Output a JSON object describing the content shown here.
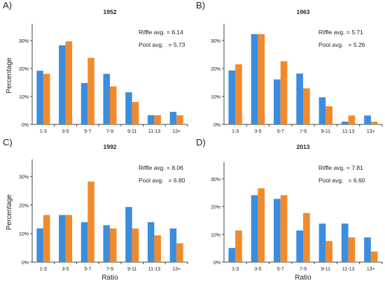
{
  "colors": {
    "riffle": "#3C8DDC",
    "pool": "#F28A2C",
    "axis": "#444444"
  },
  "chart_data": [
    {
      "type": "bar",
      "panel_label": "A)",
      "title": "1952",
      "ylabel": "Percentage",
      "xlabel": "",
      "ylim": [
        0,
        35
      ],
      "yticks": [
        "0%",
        "10%",
        "20%",
        "30%"
      ],
      "categories": [
        "1-3",
        "3-5",
        "5-7",
        "7-9",
        "9-11",
        "11-13",
        "13+"
      ],
      "series": [
        {
          "name": "Riffle",
          "values": [
            19.2,
            28.3,
            14.8,
            18.1,
            11.5,
            3.3,
            4.5
          ]
        },
        {
          "name": "Pool",
          "values": [
            18.1,
            29.7,
            23.8,
            13.6,
            8.0,
            3.3,
            3.3
          ]
        }
      ],
      "annotations": [
        "Riffle avg. = 6.14",
        "Pool avg.   = 5.73"
      ]
    },
    {
      "type": "bar",
      "panel_label": "B)",
      "title": "1963",
      "ylabel": "",
      "xlabel": "",
      "ylim": [
        0,
        35
      ],
      "yticks": [
        "0%",
        "10%",
        "20%",
        "30%"
      ],
      "categories": [
        "1-3",
        "3-5",
        "5-7",
        "7-9",
        "9-11",
        "11-13",
        "13+"
      ],
      "series": [
        {
          "name": "Riffle",
          "values": [
            19.3,
            32.3,
            16.1,
            18.2,
            9.7,
            1.0,
            3.2
          ]
        },
        {
          "name": "Pool",
          "values": [
            21.5,
            32.3,
            22.6,
            12.9,
            6.5,
            3.2,
            1.0
          ]
        }
      ],
      "annotations": [
        "Riffle avg. = 5.71",
        "Pool avg.   = 5.26"
      ]
    },
    {
      "type": "bar",
      "panel_label": "C)",
      "title": "1992",
      "ylabel": "Percentage",
      "xlabel": "Ratio",
      "ylim": [
        0,
        35
      ],
      "yticks": [
        "0%",
        "10%",
        "20%",
        "30%"
      ],
      "categories": [
        "1-3",
        "3-5",
        "5-7",
        "7-9",
        "9-11",
        "11-13",
        "13+"
      ],
      "series": [
        {
          "name": "Riffle",
          "values": [
            11.8,
            16.5,
            14.0,
            12.9,
            19.3,
            14.0,
            11.8
          ]
        },
        {
          "name": "Pool",
          "values": [
            16.5,
            16.5,
            28.2,
            11.8,
            11.8,
            9.4,
            6.6
          ]
        }
      ],
      "annotations": [
        "Riffle avg. = 8.06",
        "Pool avg.   = 6.80"
      ]
    },
    {
      "type": "bar",
      "panel_label": "D)",
      "title": "2013",
      "ylabel": "",
      "xlabel": "Ratio",
      "ylim": [
        0,
        35
      ],
      "yticks": [
        "0%",
        "10%",
        "20%",
        "30%"
      ],
      "categories": [
        "1-3",
        "3-5",
        "5-7",
        "7-9",
        "9-11",
        "11-13",
        "13+"
      ],
      "series": [
        {
          "name": "Riffle",
          "values": [
            5.1,
            24.1,
            22.8,
            11.4,
            13.9,
            13.9,
            8.9
          ]
        },
        {
          "name": "Pool",
          "values": [
            11.4,
            26.6,
            24.1,
            17.7,
            7.6,
            8.9,
            3.8
          ]
        }
      ],
      "annotations": [
        "Riffle avg. = 7.81",
        "Pool avg.   = 6.60"
      ]
    }
  ]
}
